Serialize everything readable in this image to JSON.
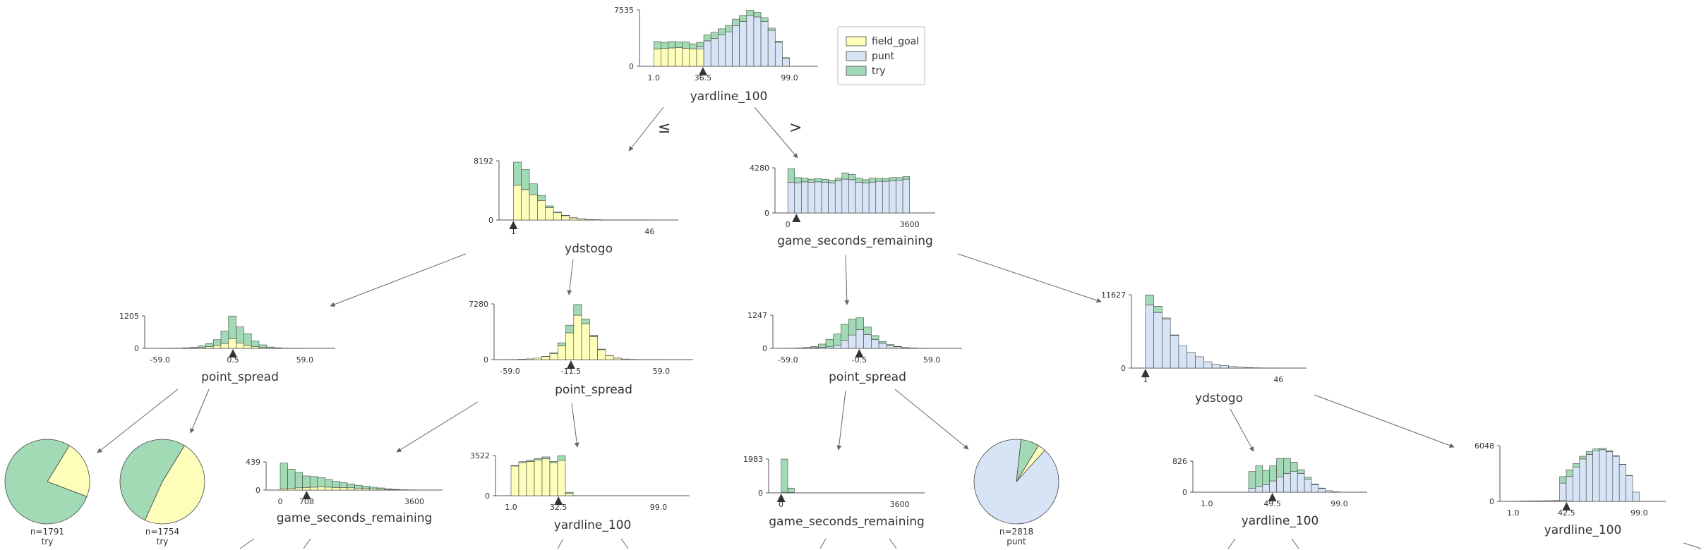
{
  "colors": {
    "field_goal": "#fefebb",
    "punt": "#d7e4f5",
    "try": "#a1dab4",
    "edge": "#666666",
    "axis": "#555555"
  },
  "legend": {
    "items": [
      {
        "key": "field_goal",
        "label": "field_goal"
      },
      {
        "key": "punt",
        "label": "punt"
      },
      {
        "key": "try",
        "label": "try"
      }
    ]
  },
  "edge_labels": {
    "le": "≤",
    "gt": ">"
  },
  "chart_data": [
    {
      "type": "bar",
      "id": "root",
      "feature": "yardline_100",
      "ymax": 7535,
      "xticks": [
        "1.0",
        "36.5",
        "99.0"
      ],
      "split": "36.5",
      "bins": [
        [
          2300,
          0,
          1000
        ],
        [
          2400,
          0,
          800
        ],
        [
          2450,
          0,
          850
        ],
        [
          2500,
          0,
          750
        ],
        [
          2400,
          0,
          850
        ],
        [
          2300,
          0,
          700
        ],
        [
          2300,
          300,
          600
        ],
        [
          0,
          3400,
          800
        ],
        [
          0,
          3700,
          850
        ],
        [
          0,
          4200,
          800
        ],
        [
          0,
          4600,
          850
        ],
        [
          0,
          5400,
          900
        ],
        [
          0,
          6000,
          800
        ],
        [
          0,
          6800,
          700
        ],
        [
          0,
          6600,
          600
        ],
        [
          0,
          6000,
          500
        ],
        [
          0,
          4800,
          300
        ],
        [
          0,
          3200,
          150
        ],
        [
          0,
          1100,
          50
        ]
      ]
    },
    {
      "type": "bar",
      "id": "n_ydstogo_1",
      "feature": "ydstogo",
      "ymax": 8192,
      "xticks": [
        "1",
        "46"
      ],
      "split": "1",
      "bins": [
        [
          4800,
          0,
          3200
        ],
        [
          4200,
          0,
          2800
        ],
        [
          3500,
          0,
          1500
        ],
        [
          2700,
          0,
          700
        ],
        [
          1700,
          0,
          250
        ],
        [
          1000,
          0,
          100
        ],
        [
          600,
          0,
          50
        ],
        [
          300,
          0,
          20
        ],
        [
          150,
          0,
          10
        ],
        [
          80,
          0,
          0
        ],
        [
          40,
          0,
          0
        ],
        [
          20,
          0,
          0
        ],
        [
          10,
          0,
          0
        ],
        [
          5,
          0,
          0
        ],
        [
          3,
          0,
          0
        ],
        [
          2,
          0,
          0
        ],
        [
          1,
          0,
          0
        ]
      ]
    },
    {
      "type": "bar",
      "id": "n_gsr_1",
      "feature": "game_seconds_remaining",
      "ymax": 4280,
      "xticks": [
        "0",
        "3600"
      ],
      "split": "",
      "bins": [
        [
          0,
          2900,
          1300
        ],
        [
          0,
          2850,
          500
        ],
        [
          0,
          2950,
          350
        ],
        [
          0,
          2900,
          300
        ],
        [
          0,
          2950,
          300
        ],
        [
          0,
          2900,
          300
        ],
        [
          0,
          2850,
          250
        ],
        [
          0,
          3050,
          250
        ],
        [
          0,
          3200,
          600
        ],
        [
          0,
          3150,
          500
        ],
        [
          0,
          2900,
          400
        ],
        [
          0,
          2850,
          300
        ],
        [
          0,
          2900,
          400
        ],
        [
          0,
          3000,
          300
        ],
        [
          0,
          3000,
          250
        ],
        [
          0,
          3050,
          300
        ],
        [
          0,
          3100,
          250
        ],
        [
          0,
          3200,
          250
        ]
      ]
    },
    {
      "type": "bar",
      "id": "n_ps_1",
      "feature": "point_spread",
      "ymax": 1205,
      "xticks": [
        "-59.0",
        "0.5",
        "59.0"
      ],
      "split": "0.5",
      "bins": [
        [
          0,
          0,
          2
        ],
        [
          0,
          0,
          5
        ],
        [
          0,
          0,
          10
        ],
        [
          5,
          0,
          15
        ],
        [
          10,
          0,
          25
        ],
        [
          30,
          0,
          60
        ],
        [
          60,
          0,
          120
        ],
        [
          100,
          0,
          220
        ],
        [
          180,
          0,
          460
        ],
        [
          350,
          0,
          850
        ],
        [
          200,
          0,
          600
        ],
        [
          120,
          0,
          420
        ],
        [
          60,
          0,
          210
        ],
        [
          30,
          0,
          100
        ],
        [
          10,
          0,
          40
        ],
        [
          5,
          0,
          15
        ],
        [
          0,
          0,
          8
        ],
        [
          0,
          0,
          3
        ],
        [
          0,
          0,
          1
        ]
      ]
    },
    {
      "type": "bar",
      "id": "n_ps_2",
      "feature": "point_spread",
      "ymax": 7280,
      "xticks": [
        "-59.0",
        "-11.5",
        "59.0"
      ],
      "split": "-11.5",
      "bins": [
        [
          20,
          0,
          0
        ],
        [
          50,
          0,
          0
        ],
        [
          100,
          0,
          0
        ],
        [
          200,
          0,
          0
        ],
        [
          400,
          0,
          20
        ],
        [
          800,
          0,
          100
        ],
        [
          1800,
          0,
          400
        ],
        [
          3500,
          0,
          1000
        ],
        [
          5800,
          0,
          1400
        ],
        [
          4700,
          0,
          600
        ],
        [
          3000,
          0,
          200
        ],
        [
          1300,
          0,
          80
        ],
        [
          500,
          0,
          20
        ],
        [
          200,
          0,
          10
        ],
        [
          80,
          0,
          0
        ],
        [
          30,
          0,
          0
        ],
        [
          10,
          0,
          0
        ],
        [
          5,
          0,
          0
        ],
        [
          2,
          0,
          0
        ]
      ]
    },
    {
      "type": "bar",
      "id": "n_ps_3",
      "feature": "point_spread",
      "ymax": 1247,
      "xticks": [
        "-59.0",
        "-0.5",
        "59.0"
      ],
      "split": "-0.5",
      "bins": [
        [
          0,
          2,
          3
        ],
        [
          0,
          5,
          8
        ],
        [
          0,
          10,
          20
        ],
        [
          0,
          20,
          50
        ],
        [
          0,
          40,
          120
        ],
        [
          0,
          60,
          280
        ],
        [
          0,
          120,
          420
        ],
        [
          0,
          300,
          600
        ],
        [
          0,
          500,
          600
        ],
        [
          0,
          700,
          450
        ],
        [
          0,
          520,
          280
        ],
        [
          0,
          330,
          150
        ],
        [
          0,
          190,
          70
        ],
        [
          0,
          110,
          30
        ],
        [
          0,
          60,
          15
        ],
        [
          0,
          25,
          5
        ],
        [
          0,
          10,
          3
        ],
        [
          0,
          4,
          1
        ],
        [
          0,
          2,
          0
        ]
      ]
    },
    {
      "type": "bar",
      "id": "n_ydstogo_2",
      "feature": "ydstogo",
      "ymax": 11627,
      "xticks": [
        "1",
        "46"
      ],
      "split": "1",
      "bins": [
        [
          0,
          10000,
          1600
        ],
        [
          0,
          8800,
          1000
        ],
        [
          0,
          7800,
          150
        ],
        [
          0,
          5200,
          50
        ],
        [
          0,
          3500,
          0
        ],
        [
          0,
          2500,
          0
        ],
        [
          0,
          1800,
          0
        ],
        [
          0,
          1000,
          0
        ],
        [
          0,
          600,
          0
        ],
        [
          0,
          400,
          0
        ],
        [
          0,
          250,
          0
        ],
        [
          0,
          150,
          0
        ],
        [
          0,
          80,
          0
        ],
        [
          0,
          40,
          0
        ],
        [
          0,
          20,
          0
        ],
        [
          0,
          10,
          0
        ]
      ]
    },
    {
      "type": "pie",
      "id": "leaf_1",
      "label": "n=1791",
      "class_label": "try",
      "fractions": [
        0.22,
        0.0,
        0.78
      ]
    },
    {
      "type": "pie",
      "id": "leaf_2",
      "label": "n=1754",
      "class_label": "try",
      "fractions": [
        0.48,
        0.0,
        0.52
      ]
    },
    {
      "type": "bar",
      "id": "n_gsr_2",
      "feature": "game_seconds_remaining",
      "ymax": 439,
      "xticks": [
        "0",
        "708",
        "3600"
      ],
      "split": "708",
      "bins": [
        [
          20,
          0,
          400
        ],
        [
          25,
          0,
          300
        ],
        [
          35,
          0,
          240
        ],
        [
          40,
          0,
          180
        ],
        [
          45,
          0,
          165
        ],
        [
          50,
          0,
          145
        ],
        [
          45,
          0,
          120
        ],
        [
          40,
          0,
          95
        ],
        [
          40,
          0,
          75
        ],
        [
          35,
          0,
          60
        ],
        [
          30,
          0,
          45
        ],
        [
          25,
          0,
          35
        ],
        [
          20,
          0,
          25
        ],
        [
          15,
          0,
          18
        ],
        [
          10,
          0,
          10
        ],
        [
          5,
          0,
          5
        ],
        [
          3,
          0,
          2
        ],
        [
          2,
          0,
          1
        ]
      ]
    },
    {
      "type": "bar",
      "id": "n_yl_1",
      "feature": "yardline_100",
      "ymax": 3522,
      "xticks": [
        "1.0",
        "32.5",
        "99.0"
      ],
      "split": "32.5",
      "bins": [
        [
          2600,
          0,
          50
        ],
        [
          2900,
          0,
          80
        ],
        [
          3000,
          0,
          100
        ],
        [
          3150,
          0,
          120
        ],
        [
          3250,
          0,
          150
        ],
        [
          2900,
          0,
          100
        ],
        [
          3100,
          0,
          400
        ],
        [
          200,
          0,
          100
        ],
        [
          0,
          0,
          0
        ],
        [
          0,
          0,
          0
        ],
        [
          0,
          0,
          0
        ],
        [
          0,
          0,
          0
        ],
        [
          0,
          0,
          0
        ],
        [
          0,
          0,
          0
        ],
        [
          0,
          0,
          0
        ],
        [
          0,
          0,
          0
        ],
        [
          0,
          0,
          0
        ],
        [
          0,
          0,
          0
        ],
        [
          0,
          0,
          0
        ]
      ]
    },
    {
      "type": "bar",
      "id": "n_gsr_3",
      "feature": "game_seconds_remaining",
      "ymax": 1983,
      "xticks": [
        "0",
        "3600"
      ],
      "split": "0",
      "bins": [
        [
          40,
          0,
          1940
        ],
        [
          20,
          0,
          260
        ],
        [
          0,
          0,
          0
        ],
        [
          0,
          0,
          0
        ],
        [
          0,
          0,
          0
        ],
        [
          0,
          0,
          0
        ],
        [
          0,
          0,
          0
        ],
        [
          0,
          0,
          0
        ],
        [
          0,
          0,
          0
        ],
        [
          0,
          0,
          0
        ],
        [
          0,
          0,
          0
        ],
        [
          0,
          0,
          0
        ],
        [
          0,
          0,
          0
        ],
        [
          0,
          0,
          0
        ],
        [
          0,
          0,
          0
        ],
        [
          0,
          0,
          0
        ],
        [
          0,
          0,
          0
        ],
        [
          0,
          0,
          0
        ]
      ]
    },
    {
      "type": "pie",
      "id": "leaf_3",
      "label": "n=2818",
      "class_label": "punt",
      "fractions": [
        0.03,
        0.9,
        0.07
      ]
    },
    {
      "type": "bar",
      "id": "n_yl_2",
      "feature": "yardline_100",
      "ymax": 826,
      "xticks": [
        "1.0",
        "49.5",
        "99.0"
      ],
      "split": "49.5",
      "bins": [
        [
          0,
          0,
          0
        ],
        [
          0,
          0,
          0
        ],
        [
          0,
          0,
          0
        ],
        [
          0,
          0,
          0
        ],
        [
          0,
          0,
          0
        ],
        [
          0,
          0,
          0
        ],
        [
          0,
          100,
          450
        ],
        [
          0,
          150,
          550
        ],
        [
          0,
          200,
          380
        ],
        [
          0,
          300,
          400
        ],
        [
          0,
          400,
          500
        ],
        [
          0,
          500,
          400
        ],
        [
          0,
          550,
          250
        ],
        [
          0,
          500,
          100
        ],
        [
          0,
          350,
          50
        ],
        [
          0,
          200,
          20
        ],
        [
          0,
          100,
          10
        ],
        [
          0,
          40,
          0
        ],
        [
          0,
          10,
          0
        ]
      ]
    },
    {
      "type": "bar",
      "id": "n_yl_3",
      "feature": "yardline_100",
      "ymax": 6048,
      "xticks": [
        "1.0",
        "42.5",
        "99.0"
      ],
      "split": "42.5",
      "bins": [
        [
          0,
          10,
          10
        ],
        [
          0,
          20,
          10
        ],
        [
          0,
          30,
          10
        ],
        [
          0,
          40,
          10
        ],
        [
          0,
          50,
          10
        ],
        [
          0,
          60,
          10
        ],
        [
          0,
          80,
          10
        ],
        [
          80,
          1900,
          700
        ],
        [
          30,
          2700,
          700
        ],
        [
          0,
          3700,
          400
        ],
        [
          0,
          4600,
          300
        ],
        [
          0,
          5100,
          300
        ],
        [
          0,
          5500,
          200
        ],
        [
          0,
          5600,
          150
        ],
        [
          0,
          5400,
          100
        ],
        [
          0,
          4900,
          50
        ],
        [
          0,
          4000,
          30
        ],
        [
          0,
          2800,
          20
        ],
        [
          0,
          1000,
          0
        ]
      ]
    }
  ]
}
